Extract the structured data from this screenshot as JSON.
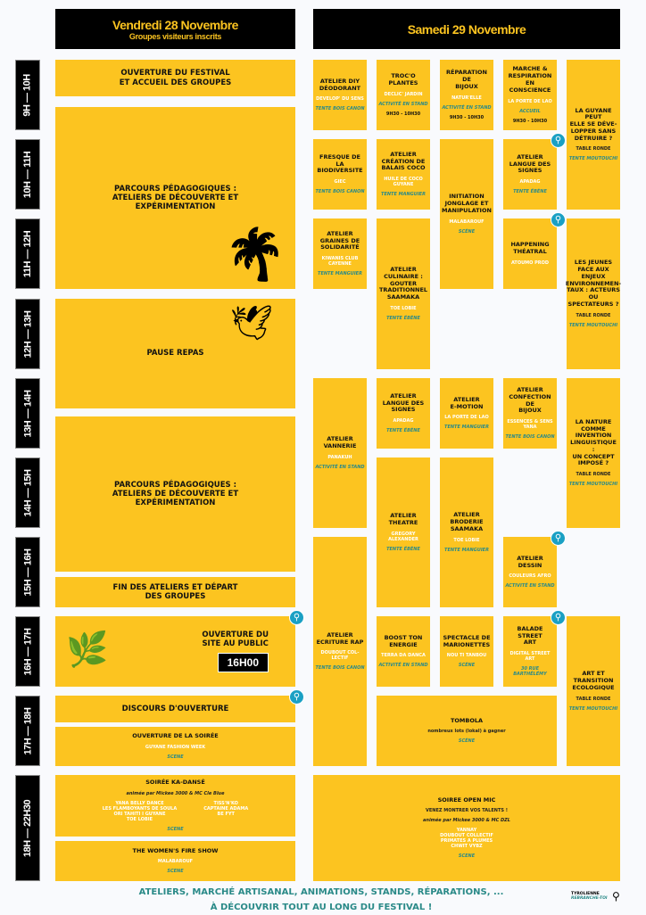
{
  "friday": {
    "title": "Vendredi 28 Novembre",
    "subtitle": "Groupes visiteurs inscrits"
  },
  "saturday": {
    "title": "Samedi 29 Novembre"
  },
  "times": [
    "9H — 10H",
    "10H — 11H",
    "11H — 12H",
    "12H — 13H",
    "13H — 14H",
    "14H — 15H",
    "15H — 16H",
    "16H — 17H",
    "17H — 18H",
    "18H — 22H30"
  ],
  "friday_events": [
    {
      "title": "OUVERTURE DU FESTIVAL\nET ACCUEIL DES GROUPES"
    },
    {
      "title": "PARCOURS PÉDAGOGIQUES :\nATELIERS DE DÉCOUVERTE ET\nEXPÉRIMENTATION",
      "icon": "palm-plant-icon"
    },
    {
      "title": "PAUSE REPAS",
      "icon": "birds-icon"
    },
    {
      "title": "PARCOURS PÉDAGOGIQUES :\nATELIERS DE DÉCOUVERTE ET\nEXPÉRIMENTATION"
    },
    {
      "title": "FIN DES ATELIERS ET DÉPART\nDES GROUPES"
    },
    {
      "title": "OUVERTURE DU\nSITE AU PUBLIC",
      "time": "16H00",
      "icon": "tapir-icon"
    },
    {
      "title": "DISCOURS D'OUVERTURE"
    },
    {
      "title": "OUVERTURE DE LA SOIRÉE",
      "org": "GUYANE FASHION WEEK",
      "location": "SCENE"
    },
    {
      "title": "SOIRÉE KA-DANSÉ",
      "host": "animée par Mickee 3000 & MC Cle Blue",
      "org": "YANA BELLY DANCE\nLES FLAMBOYANTS DE SOULA\nORI TAHITI I GUYANE\nTOE LOBIE",
      "org2": "TISS'N'KO\nCAPTAINE ADAMA\nBE FYT",
      "location": "SCENE"
    },
    {
      "title": "THE WOMEN'S FIRE SHOW",
      "org": "MALABAROUF",
      "location": "SCENE"
    }
  ],
  "saturday_events": [
    {
      "title": "ATELIER DIY\nDÉODORANT",
      "org": "DEVELOP' DU SENS",
      "location": "TENTE BOIS CANON"
    },
    {
      "title": "FRESQUE DE LA\nBIODIVERSITE",
      "org": "GIEC",
      "location": "TENTE BOIS CANON"
    },
    {
      "title": "ATELIER\nGRAINES DE\nSOLIDARITÉ",
      "org": "KIWANIS CLUB\nCAYENNE",
      "location": "TENTE MANGUIER"
    },
    {
      "title": "ATELIER\nVANNERIE",
      "org": "PANAKUH",
      "location": "ACTIVITÉ EN STAND"
    },
    {
      "title": "ATELIER\nECRITURE RAP",
      "org": "DOUBOUT COL-\nLECTIF",
      "location": "TENTE BOIS CANON"
    },
    {
      "title": "TROC'O PLANTES",
      "org": "DECLIC' JARDIN",
      "location": "ACTIVITÉ EN STAND",
      "time": "9H30 - 10H30"
    },
    {
      "title": "ATELIER\nCRÉATION DE\nBALAIS COCO",
      "org": "HUILE DE COCO\nGUYANE",
      "location": "TENTE MANGUIER"
    },
    {
      "title": "ATELIER\nCULINAIRE :\nGOUTER\nTRADITIONNEL\nSAAMAKA",
      "org": "TOE LOBIE",
      "location": "TENTE ÉBÈNE"
    },
    {
      "title": "ATELIER\nLANGUE DES\nSIGNES",
      "org": "APADAG",
      "location": "TENTE ÉBÈNE"
    },
    {
      "title": "ATELIER\nTHEATRE",
      "org": "GREGORY\nALEXANDER",
      "location": "TENTE ÉBÈNE"
    },
    {
      "title": "BOOST TON\nENERGIE",
      "org": "TERRA DA DANCA",
      "location": "ACTIVITÉ EN STAND"
    },
    {
      "title": "RÉPARATION DE\nBIJOUX",
      "org": "NATUR'ELLE",
      "location": "ACTIVITÉ EN STAND",
      "time": "9H30 - 10H30"
    },
    {
      "title": "INITIATION\nJONGLAGE ET\nMANIPULATION",
      "org": "MALABAROUF",
      "location": "SCÈNE"
    },
    {
      "title": "ATELIER\nE-MOTION",
      "org": "LA PORTE DE LAO",
      "location": "TENTE MANGUIER"
    },
    {
      "title": "ATELIER\nBRODERIE\nSAAMAKA",
      "org": "TOE LOBIE",
      "location": "TENTE MANGUIER"
    },
    {
      "title": "SPECTACLE DE\nMARIONETTES",
      "org": "NOU TI TANBOU",
      "location": "SCÈNE"
    },
    {
      "title": "MARCHE &\nRESPIRATION EN\nCONSCIENCE",
      "org": "LA PORTE DE LAO",
      "location": "ACCUEIL",
      "time": "9H30 - 10H30"
    },
    {
      "title": "ATELIER\nLANGUE DES\nSIGNES",
      "org": "APADAG",
      "location": "TENTE ÉBÈNE"
    },
    {
      "title": "HAPPENING\nTHÉATRAL",
      "org": "ATOUMO PROD"
    },
    {
      "title": "ATELIER\nCONFECTION DE\nBIJOUX",
      "org": "ESSENCES & SENS\nYANA",
      "location": "TENTE BOIS CANON"
    },
    {
      "title": "ATELIER\nDESSIN",
      "org": "COULEURS AFRO",
      "location": "ACTIVITÉ EN STAND"
    },
    {
      "title": "BALADE STREET\nART",
      "org": "DIGITAL STREET ART",
      "location": "30 RUE BARTHÉLÉMY"
    },
    {
      "title": "LA GUYANE PEUT\nELLE SE DÉVE-\nLOPPER SANS\nDÉTRUIRE ?",
      "type": "TABLE RONDE",
      "location": "TENTE MOUTOUCHI"
    },
    {
      "title": "LES  JEUNES\nFACE AUX\nENJEUX\nENVIRONNEMEN-\nTAUX : ACTEURS\nOU\nSPECTATEURS ?",
      "type": "TABLE RONDE",
      "location": "TENTE MOUTOUCHI"
    },
    {
      "title": "LA NATURE\nCOMME\nINVENTION\nLINGUISTIQUE :\nUN CONCEPT\nIMPOSÉ ?",
      "type": "TABLE RONDE",
      "location": "TENTE MOUTOUCHI"
    },
    {
      "title": "ART ET\nTRANSITION\nECOLOGIQUE",
      "type": "TABLE RONDE",
      "location": "TENTE MOUTOUCHI"
    },
    {
      "title": "TOMBOLA",
      "type": "nombreux lots (lokal) à gagner",
      "location": "SCÈNE"
    },
    {
      "title": "SOIREE OPEN MIC",
      "type": "VENEZ MONTRER VOS TALENTS !",
      "host": "animée par Mickee 3000 & MC DZL",
      "org": "YANNAY\nDOUBOUT COLLECTIF\nPRIMATES A PLUMES\nCHWIT VYBZ",
      "location": "SCENE"
    }
  ],
  "footer": {
    "line1": "ATELIERS, MARCHÉ ARTISANAL, ANIMATIONS, STANDS, RÉPARATIONS, ...",
    "line2": "À DÉCOUVRIR TOUT AU LONG DU FESTIVAL !"
  },
  "legend": {
    "title": "TYROLIENNE",
    "subtitle": "REBRANCHE-TOI",
    "icon": "zipline-icon"
  },
  "colors": {
    "yellow": "#fcc420",
    "teal": "#2a8a88",
    "black": "#000000",
    "zipline_badge": "#1ba0c4"
  }
}
